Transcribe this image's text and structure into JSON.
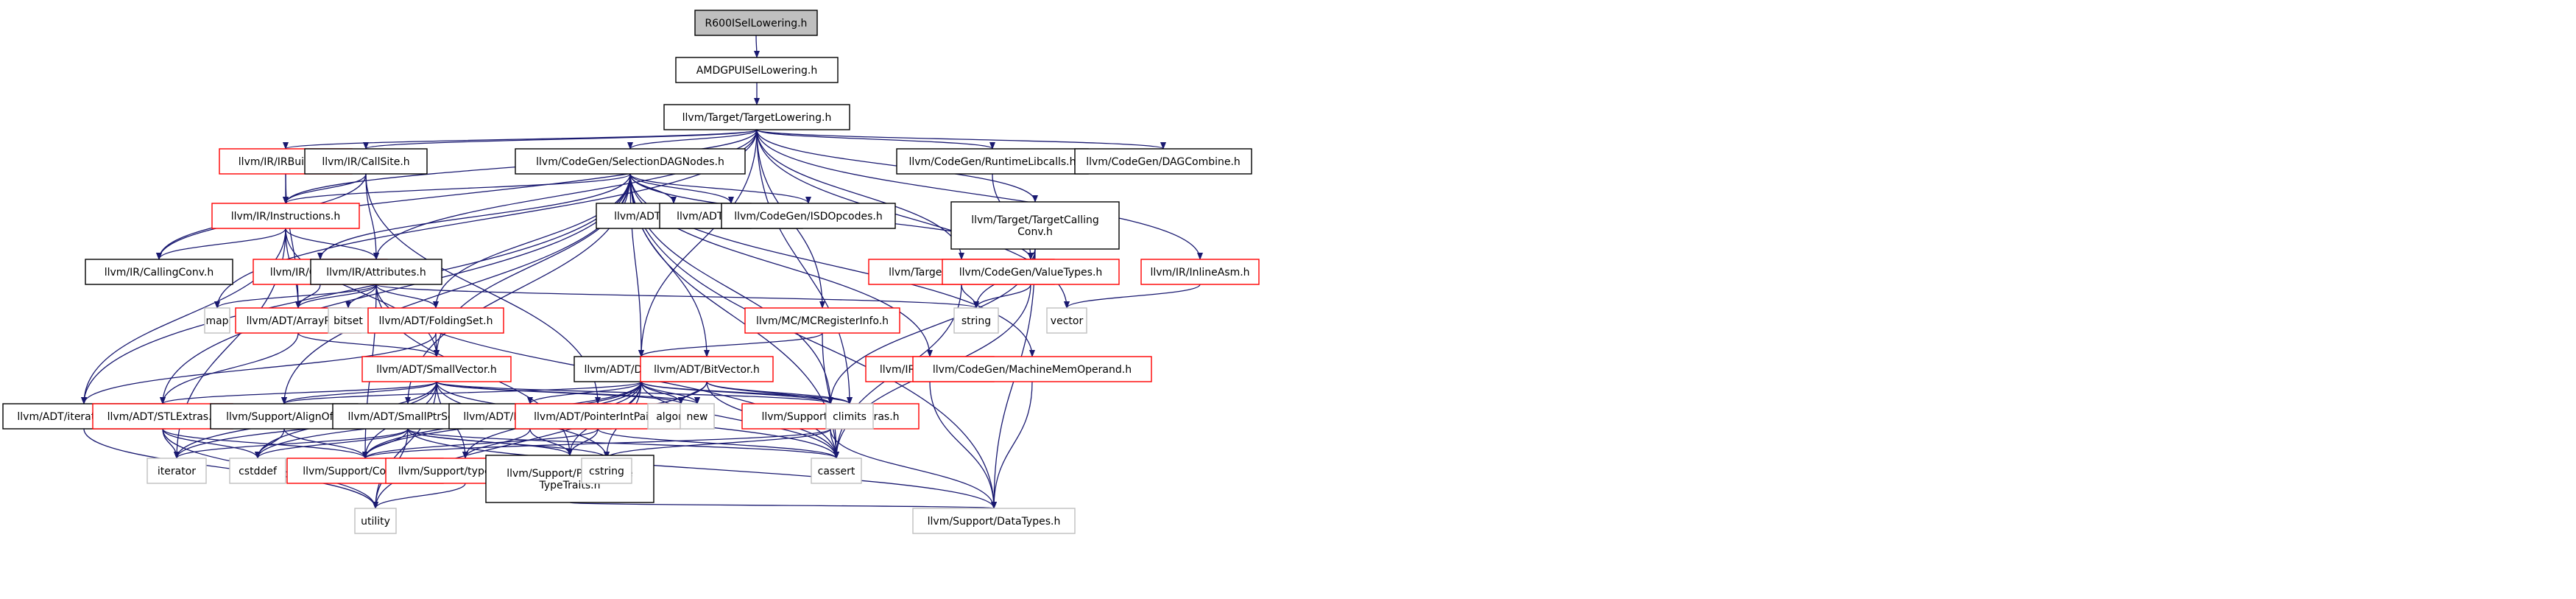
{
  "nodes": [
    {
      "id": "r600",
      "label": "R600ISelLowering.h",
      "style": "root"
    },
    {
      "id": "amdgpu",
      "label": "AMDGPUISelLowering.h",
      "style": "black"
    },
    {
      "id": "tl",
      "label": "llvm/Target/TargetLowering.h",
      "style": "black"
    },
    {
      "id": "irbuilder",
      "label": "llvm/IR/IRBuilder.h",
      "style": "red"
    },
    {
      "id": "callsite",
      "label": "llvm/IR/CallSite.h",
      "style": "black"
    },
    {
      "id": "sdnodes",
      "label": "llvm/CodeGen/SelectionDAGNodes.h",
      "style": "black"
    },
    {
      "id": "rtlib",
      "label": "llvm/CodeGen/RuntimeLibcalls.h",
      "style": "black"
    },
    {
      "id": "dagcombine",
      "label": "llvm/CodeGen/DAGCombine.h",
      "style": "black"
    },
    {
      "id": "tcc",
      "label": [
        "llvm/Target/TargetCalling",
        "Conv.h"
      ],
      "style": "black"
    },
    {
      "id": "instr",
      "label": "llvm/IR/Instructions.h",
      "style": "red"
    },
    {
      "id": "graphtraits",
      "label": "llvm/ADT/GraphTraits.h",
      "style": "black"
    },
    {
      "id": "ilistnode",
      "label": "llvm/ADT/ilist_node.h",
      "style": "black"
    },
    {
      "id": "isdop",
      "label": "llvm/CodeGen/ISDOpcodes.h",
      "style": "black"
    },
    {
      "id": "callconv",
      "label": "llvm/IR/CallingConv.h",
      "style": "black"
    },
    {
      "id": "constants",
      "label": "llvm/IR/Constants.h",
      "style": "red"
    },
    {
      "id": "attributes",
      "label": "llvm/IR/Attributes.h",
      "style": "black"
    },
    {
      "id": "tm",
      "label": "llvm/Target/TargetMachine.h",
      "style": "red"
    },
    {
      "id": "valuetypes",
      "label": "llvm/CodeGen/ValueTypes.h",
      "style": "red"
    },
    {
      "id": "inlineasm",
      "label": "llvm/IR/InlineAsm.h",
      "style": "red"
    },
    {
      "id": "map",
      "label": "map",
      "style": "grey"
    },
    {
      "id": "arrayref",
      "label": "llvm/ADT/ArrayRef.h",
      "style": "red"
    },
    {
      "id": "bitset",
      "label": "bitset",
      "style": "grey"
    },
    {
      "id": "foldingset",
      "label": "llvm/ADT/FoldingSet.h",
      "style": "red"
    },
    {
      "id": "mcreg",
      "label": "llvm/MC/MCRegisterInfo.h",
      "style": "red"
    },
    {
      "id": "string",
      "label": "string",
      "style": "grey"
    },
    {
      "id": "vector",
      "label": "vector",
      "style": "grey"
    },
    {
      "id": "smallvector",
      "label": "llvm/ADT/SmallVector.h",
      "style": "red"
    },
    {
      "id": "densemap",
      "label": "llvm/ADT/DenseMap.h",
      "style": "black"
    },
    {
      "id": "bitvector",
      "label": "llvm/ADT/BitVector.h",
      "style": "red"
    },
    {
      "id": "debugloc",
      "label": "llvm/IR/DebugLoc.h",
      "style": "red"
    },
    {
      "id": "mmo",
      "label": "llvm/CodeGen/MachineMemOperand.h",
      "style": "red"
    },
    {
      "id": "iterrange",
      "label": "llvm/ADT/iterator_range.h",
      "style": "black"
    },
    {
      "id": "stlextras",
      "label": "llvm/ADT/STLExtras.h",
      "style": "red"
    },
    {
      "id": "alignof",
      "label": "llvm/Support/AlignOf.h",
      "style": "black"
    },
    {
      "id": "smallptrset",
      "label": "llvm/ADT/SmallPtrSet.h",
      "style": "black"
    },
    {
      "id": "densemapinfo",
      "label": "llvm/ADT/DenseMapInfo.h",
      "style": "black"
    },
    {
      "id": "ptrintpair",
      "label": "llvm/ADT/PointerIntPair.h",
      "style": "red"
    },
    {
      "id": "algorithm",
      "label": "algorithm",
      "style": "grey"
    },
    {
      "id": "new",
      "label": "new",
      "style": "grey"
    },
    {
      "id": "mathextras",
      "label": "llvm/Support/MathExtras.h",
      "style": "red"
    },
    {
      "id": "climits",
      "label": "climits",
      "style": "grey"
    },
    {
      "id": "iterator",
      "label": "iterator",
      "style": "grey"
    },
    {
      "id": "cstddef",
      "label": "cstddef",
      "style": "grey"
    },
    {
      "id": "compiler",
      "label": "llvm/Support/Compiler.h",
      "style": "red"
    },
    {
      "id": "typetraits",
      "label": "llvm/Support/type_traits.h",
      "style": "red"
    },
    {
      "id": "ptrlike",
      "label": [
        "llvm/Support/PointerLike",
        "TypeTraits.h"
      ],
      "style": "black"
    },
    {
      "id": "cstring",
      "label": "cstring",
      "style": "grey"
    },
    {
      "id": "cassert",
      "label": "cassert",
      "style": "grey"
    },
    {
      "id": "utility",
      "label": "utility",
      "style": "grey"
    },
    {
      "id": "datatypes",
      "label": "llvm/Support/DataTypes.h",
      "style": "grey"
    }
  ],
  "edges": [
    [
      "r600",
      "amdgpu"
    ],
    [
      "amdgpu",
      "tl"
    ],
    [
      "tl",
      "irbuilder"
    ],
    [
      "tl",
      "callsite"
    ],
    [
      "tl",
      "sdnodes"
    ],
    [
      "tl",
      "rtlib"
    ],
    [
      "tl",
      "dagcombine"
    ],
    [
      "tl",
      "tcc"
    ],
    [
      "tl",
      "instr"
    ],
    [
      "tl",
      "callconv"
    ],
    [
      "tl",
      "attributes"
    ],
    [
      "tl",
      "tm"
    ],
    [
      "tl",
      "inlineasm"
    ],
    [
      "tl",
      "map"
    ],
    [
      "tl",
      "vector"
    ],
    [
      "tl",
      "densemap"
    ],
    [
      "tl",
      "mcreg"
    ],
    [
      "tl",
      "climits"
    ],
    [
      "irbuilder",
      "instr"
    ],
    [
      "irbuilder",
      "arrayref"
    ],
    [
      "callsite",
      "instr"
    ],
    [
      "callsite",
      "attributes"
    ],
    [
      "callsite",
      "callconv"
    ],
    [
      "callsite",
      "ptrintpair"
    ],
    [
      "sdnodes",
      "instr"
    ],
    [
      "sdnodes",
      "graphtraits"
    ],
    [
      "sdnodes",
      "ilistnode"
    ],
    [
      "sdnodes",
      "isdop"
    ],
    [
      "sdnodes",
      "constants"
    ],
    [
      "sdnodes",
      "valuetypes"
    ],
    [
      "sdnodes",
      "foldingset"
    ],
    [
      "sdnodes",
      "smallvector"
    ],
    [
      "sdnodes",
      "bitvector"
    ],
    [
      "sdnodes",
      "debugloc"
    ],
    [
      "sdnodes",
      "mmo"
    ],
    [
      "sdnodes",
      "smallptrset"
    ],
    [
      "sdnodes",
      "mathextras"
    ],
    [
      "sdnodes",
      "stlextras"
    ],
    [
      "sdnodes",
      "alignof"
    ],
    [
      "sdnodes",
      "cassert"
    ],
    [
      "sdnodes",
      "densemap"
    ],
    [
      "sdnodes",
      "iterrange"
    ],
    [
      "sdnodes",
      "datatypes"
    ],
    [
      "rtlib",
      "valuetypes"
    ],
    [
      "tcc",
      "valuetypes"
    ],
    [
      "tcc",
      "string"
    ],
    [
      "tcc",
      "mathextras"
    ],
    [
      "tcc",
      "datatypes"
    ],
    [
      "instr",
      "callconv"
    ],
    [
      "instr",
      "attributes"
    ],
    [
      "instr",
      "arrayref"
    ],
    [
      "instr",
      "iterrange"
    ],
    [
      "instr",
      "smallvector"
    ],
    [
      "instr",
      "iterator"
    ],
    [
      "constants",
      "arrayref"
    ],
    [
      "attributes",
      "arrayref"
    ],
    [
      "attributes",
      "foldingset"
    ],
    [
      "attributes",
      "map"
    ],
    [
      "attributes",
      "bitset"
    ],
    [
      "attributes",
      "string"
    ],
    [
      "attributes",
      "compiler"
    ],
    [
      "attributes",
      "cassert"
    ],
    [
      "attributes",
      "ptrlike"
    ],
    [
      "tm",
      "string"
    ],
    [
      "tm",
      "cassert"
    ],
    [
      "valuetypes",
      "string"
    ],
    [
      "valuetypes",
      "cassert"
    ],
    [
      "inlineasm",
      "vector"
    ],
    [
      "arrayref",
      "smallvector"
    ],
    [
      "arrayref",
      "stlextras"
    ],
    [
      "foldingset",
      "smallvector"
    ],
    [
      "foldingset",
      "iterrange"
    ],
    [
      "mcreg",
      "densemap"
    ],
    [
      "mcreg",
      "cassert"
    ],
    [
      "smallvector",
      "alignof"
    ],
    [
      "smallvector",
      "compiler"
    ],
    [
      "smallvector",
      "mathextras"
    ],
    [
      "smallvector",
      "typetraits"
    ],
    [
      "smallvector",
      "algorithm"
    ],
    [
      "smallvector",
      "cassert"
    ],
    [
      "smallvector",
      "cstddef"
    ],
    [
      "smallvector",
      "cstring"
    ],
    [
      "smallvector",
      "iterator"
    ],
    [
      "smallvector",
      "new"
    ],
    [
      "smallvector",
      "utility"
    ],
    [
      "smallvector",
      "stlextras"
    ],
    [
      "densemap",
      "densemapinfo"
    ],
    [
      "densemap",
      "algorithm"
    ],
    [
      "densemap",
      "new"
    ],
    [
      "densemap",
      "mathextras"
    ],
    [
      "densemap",
      "climits"
    ],
    [
      "densemap",
      "cassert"
    ],
    [
      "densemap",
      "cstddef"
    ],
    [
      "densemap",
      "cstring"
    ],
    [
      "densemap",
      "utility"
    ],
    [
      "densemap",
      "compiler"
    ],
    [
      "densemap",
      "ptrlike"
    ],
    [
      "densemap",
      "typetraits"
    ],
    [
      "densemap",
      "iterator"
    ],
    [
      "densemap",
      "alignof"
    ],
    [
      "bitvector",
      "mathextras"
    ],
    [
      "bitvector",
      "algorithm"
    ],
    [
      "bitvector",
      "cassert"
    ],
    [
      "bitvector",
      "climits"
    ],
    [
      "bitvector",
      "compiler"
    ],
    [
      "debugloc",
      "datatypes"
    ],
    [
      "mmo",
      "datatypes"
    ],
    [
      "iterrange",
      "utility"
    ],
    [
      "stlextras",
      "compiler"
    ],
    [
      "stlextras",
      "cstddef"
    ],
    [
      "stlextras",
      "iterator"
    ],
    [
      "stlextras",
      "utility"
    ],
    [
      "alignof",
      "compiler"
    ],
    [
      "alignof",
      "cstddef"
    ],
    [
      "smallptrset",
      "compiler"
    ],
    [
      "smallptrset",
      "datatypes"
    ],
    [
      "smallptrset",
      "ptrlike"
    ],
    [
      "smallptrset",
      "cassert"
    ],
    [
      "smallptrset",
      "cstddef"
    ],
    [
      "smallptrset",
      "cstring"
    ],
    [
      "smallptrset",
      "iterator"
    ],
    [
      "smallptrset",
      "utility"
    ],
    [
      "densemapinfo",
      "ptrlike"
    ],
    [
      "densemapinfo",
      "typetraits"
    ],
    [
      "ptrintpair",
      "ptrlike"
    ],
    [
      "ptrintpair",
      "compiler"
    ],
    [
      "ptrintpair",
      "cassert"
    ],
    [
      "mathextras",
      "compiler"
    ],
    [
      "mathextras",
      "datatypes"
    ],
    [
      "mathextras",
      "cassert"
    ],
    [
      "mathextras",
      "cstring"
    ],
    [
      "typetraits",
      "utility"
    ],
    [
      "ptrlike",
      "datatypes"
    ]
  ]
}
